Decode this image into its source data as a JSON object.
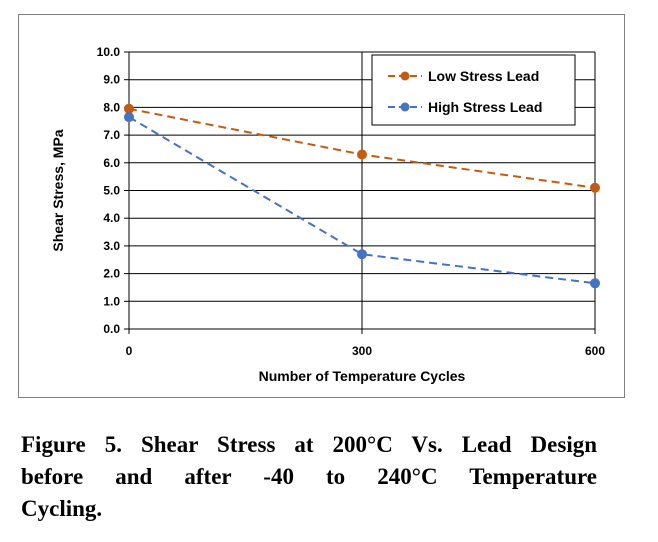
{
  "chart_data": {
    "type": "line",
    "xlabel": "Number of Temperature Cycles",
    "ylabel": "Shear Stress, MPa",
    "x_categories": [
      "0",
      "300",
      "600"
    ],
    "x": [
      0,
      300,
      600
    ],
    "ylim": [
      0,
      10
    ],
    "y_ticks": [
      "0.0",
      "1.0",
      "2.0",
      "3.0",
      "4.0",
      "5.0",
      "6.0",
      "7.0",
      "8.0",
      "9.0",
      "10.0"
    ],
    "grid": true,
    "legend_position": "top-right",
    "series": [
      {
        "name": "Low Stress Lead",
        "values": [
          7.95,
          6.3,
          5.1
        ],
        "color": "#c55a11",
        "line_style": "dashed",
        "marker": "circle"
      },
      {
        "name": "High Stress Lead",
        "values": [
          7.65,
          2.7,
          1.65
        ],
        "color": "#4472c4",
        "line_style": "dashed",
        "marker": "circle"
      }
    ]
  },
  "caption": {
    "line1": "Figure 5. Shear Stress at 200°C Vs. Lead Design",
    "line2": "before and after -40 to 240°C Temperature",
    "line3": "Cycling."
  }
}
